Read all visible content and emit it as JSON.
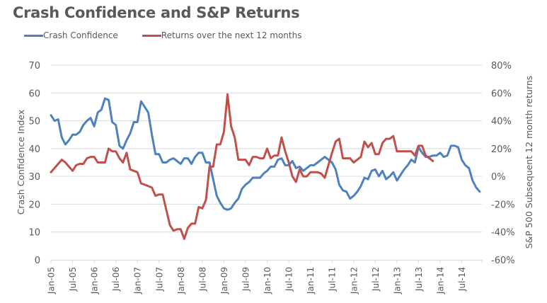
{
  "chart_data": {
    "type": "line",
    "title": "Crash Confidence and S&P Returns",
    "legend_position": "top-left",
    "grid": true,
    "x_start_month": "2005-01",
    "x_end_month": "2014-12",
    "x_tick_labels": [
      "Jan-05",
      "Jul-05",
      "Jan-06",
      "Jul-06",
      "Jan-07",
      "Jul-07",
      "Jan-08",
      "Jul-08",
      "Jan-09",
      "Jul-09",
      "Jan-10",
      "Jul-10",
      "Jan-11",
      "Jul-11",
      "Jan-12",
      "Jul-12",
      "Jan-13",
      "Jul-13",
      "Jan-14",
      "Jul-14"
    ],
    "y_left": {
      "label": "Crash Confidence Index",
      "range": [
        0,
        70
      ],
      "ticks": [
        "0",
        "10",
        "20",
        "30",
        "40",
        "50",
        "60",
        "70"
      ]
    },
    "y_right": {
      "label": "S&P 500 Subsequent 12 month returns",
      "range": [
        -60,
        80
      ],
      "unit": "%",
      "ticks": [
        "-60%",
        "-40%",
        "-20%",
        "0%",
        "20%",
        "40%",
        "60%",
        "80%"
      ]
    },
    "series": [
      {
        "name": "Crash Confidence",
        "axis": "left",
        "color": "#4F81BD",
        "values": [
          52,
          50,
          50.5,
          44,
          41.5,
          43,
          45,
          45,
          46,
          48.5,
          50,
          51,
          48,
          53,
          54,
          58,
          57.5,
          49.5,
          48.5,
          41,
          40,
          43,
          45.5,
          49.5,
          49.5,
          57,
          55,
          53,
          45,
          38,
          38,
          35,
          35,
          36,
          36.5,
          35.5,
          34.5,
          36.5,
          36.5,
          34.5,
          37,
          38.5,
          38.5,
          35,
          35,
          29,
          23,
          20.5,
          18.5,
          18,
          18.5,
          20.5,
          22,
          25.5,
          27,
          28,
          29.5,
          29.5,
          29.5,
          31,
          32,
          33.5,
          33.5,
          36,
          36.5,
          34,
          34,
          35.5,
          33,
          33.5,
          32,
          33,
          34,
          34,
          35,
          36,
          37,
          36,
          35,
          32.5,
          27,
          25,
          24.5,
          22,
          23,
          24.5,
          26.5,
          29.5,
          29,
          32,
          32.5,
          30,
          32,
          29,
          30,
          31.5,
          28.5,
          30.5,
          32.5,
          34,
          36,
          35,
          40.5,
          38.5,
          37,
          37,
          37.5,
          37.5,
          38.5,
          37,
          37.5,
          41,
          41,
          40.5,
          36,
          34,
          33,
          28.5,
          26,
          24.5
        ]
      },
      {
        "name": "Returns over the next 12 months",
        "axis": "right",
        "color": "#C0504D",
        "values": [
          3,
          6,
          9,
          12,
          10,
          7,
          4,
          8,
          9,
          9,
          13,
          14,
          14,
          10,
          10,
          10,
          20,
          18,
          18,
          13,
          10,
          17,
          5,
          4,
          3,
          -5,
          -6,
          -7,
          -8,
          -14,
          -13,
          -13,
          -24,
          -35,
          -39,
          -38,
          -38,
          -45,
          -37,
          -34,
          -34,
          -22,
          -23,
          -17,
          7,
          7,
          23,
          23,
          32,
          59,
          36,
          28,
          12,
          12,
          12,
          8,
          14,
          14,
          13,
          13,
          20,
          13,
          15,
          15,
          28,
          18,
          10,
          0,
          -4,
          5,
          0,
          0,
          3,
          3,
          3,
          2,
          -1,
          8,
          17,
          25,
          27,
          13,
          13,
          13,
          10,
          12,
          14,
          25,
          21,
          24,
          16,
          16,
          24,
          27,
          27,
          29,
          18,
          18,
          18,
          18,
          18,
          15,
          22,
          22,
          15,
          13,
          11
        ]
      }
    ]
  }
}
